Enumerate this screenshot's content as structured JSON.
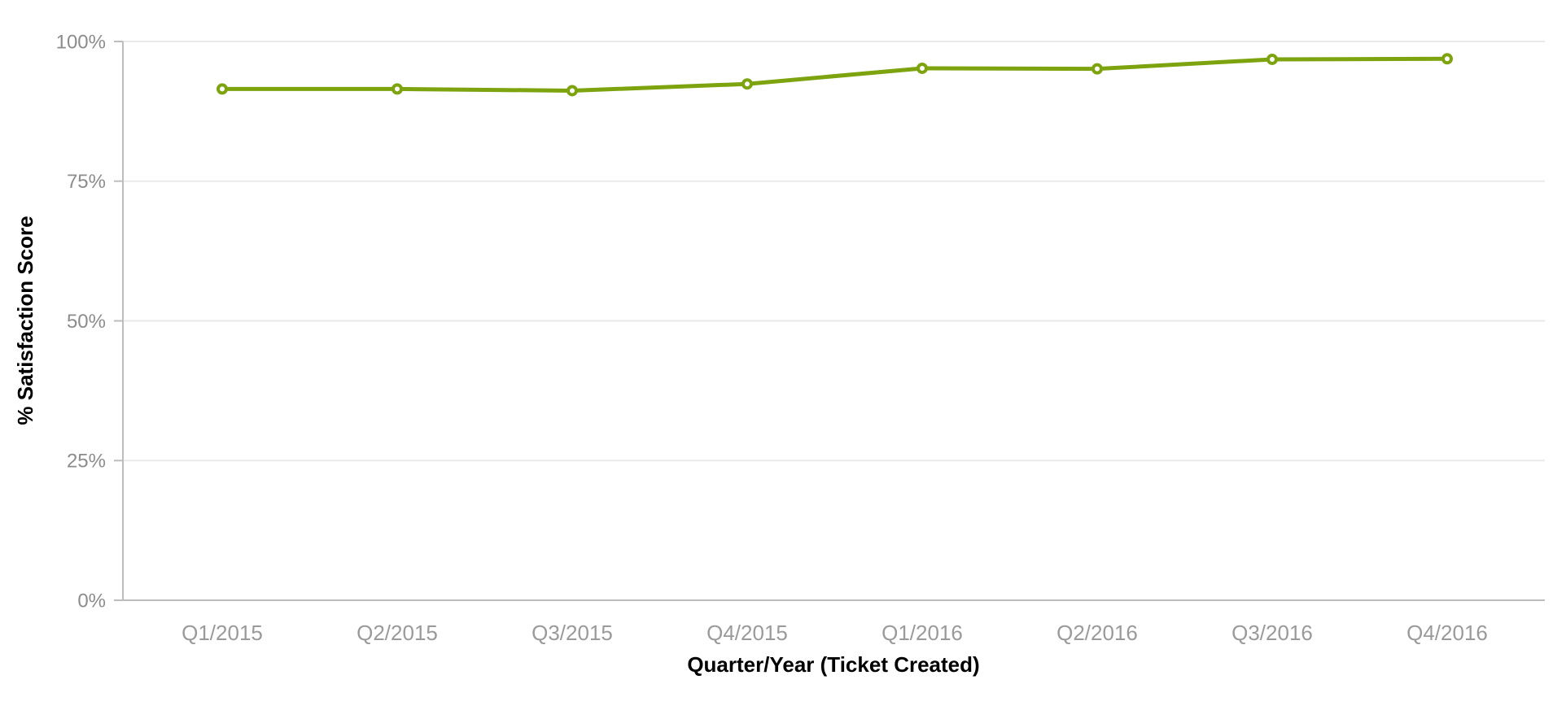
{
  "chart_data": {
    "type": "line",
    "title": "",
    "categories": [
      "Q1/2015",
      "Q2/2015",
      "Q3/2015",
      "Q4/2015",
      "Q1/2016",
      "Q2/2016",
      "Q3/2016",
      "Q4/2016"
    ],
    "series": [
      {
        "name": "% Satisfaction Score",
        "values": [
          91.5,
          91.5,
          91.2,
          92.4,
          95.2,
          95.1,
          96.8,
          96.9
        ]
      }
    ],
    "xlabel": "Quarter/Year (Ticket Created)",
    "ylabel": "% Satisfaction Score",
    "ylim": [
      0,
      100
    ],
    "yticks": [
      0,
      25,
      50,
      75,
      100
    ],
    "ytick_labels": [
      "0%",
      "25%",
      "50%%",
      "75%",
      "100%"
    ],
    "grid": true,
    "legend": false,
    "marker_style": "open-circle",
    "colors": {
      "line": "#7DA30F",
      "marker_fill": "#FFFFFF",
      "grid": "#EAEAEA",
      "axis": "#BDBDBD",
      "tick_label": "#8C8C8C",
      "category_label": "#9A9A9A",
      "axis_title": "#6E6E6E",
      "background": "#FFFFFF"
    }
  }
}
